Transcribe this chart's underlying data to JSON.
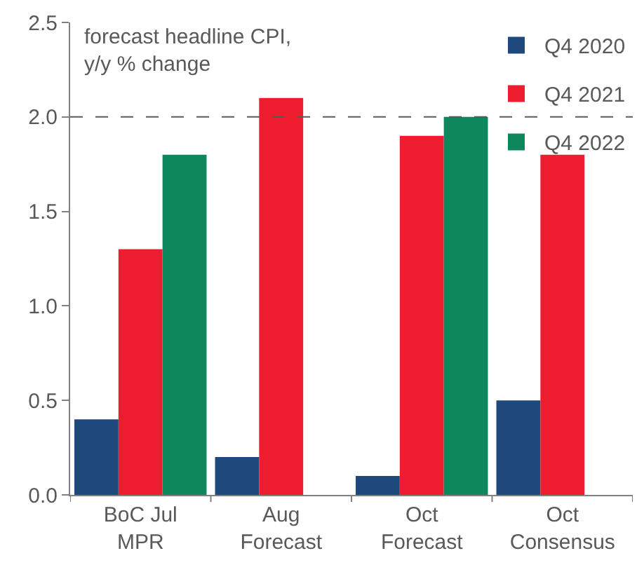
{
  "chart_data": {
    "type": "bar",
    "categories": [
      "BoC Jul\nMPR",
      "Aug\nForecast",
      "Oct\nForecast",
      "Oct\nConsensus"
    ],
    "series": [
      {
        "name": "Q4 2020",
        "color": "#1f497d",
        "values": [
          0.4,
          0.2,
          0.1,
          0.5
        ]
      },
      {
        "name": "Q4 2021",
        "color": "#ed1c2e",
        "values": [
          1.3,
          2.1,
          1.9,
          1.8
        ]
      },
      {
        "name": "Q4 2022",
        "color": "#0e875c",
        "values": [
          1.8,
          null,
          2.0,
          null
        ]
      }
    ],
    "ylim": [
      0,
      2.5
    ],
    "yticks": [
      {
        "value": 0,
        "label": "0.0"
      },
      {
        "value": 0.5,
        "label": "0.5"
      },
      {
        "value": 1,
        "label": "1.0"
      },
      {
        "value": 1.5,
        "label": "1.5"
      },
      {
        "value": 2,
        "label": "2.0"
      },
      {
        "value": 2.5,
        "label": "2.5"
      }
    ],
    "ref_lines": [
      {
        "axis": "y",
        "value": 2.0,
        "color": "#595959",
        "line_style": "dashed"
      }
    ],
    "annotations": [
      "forecast headline CPI,\ny/y % change"
    ],
    "legend": "top right"
  }
}
